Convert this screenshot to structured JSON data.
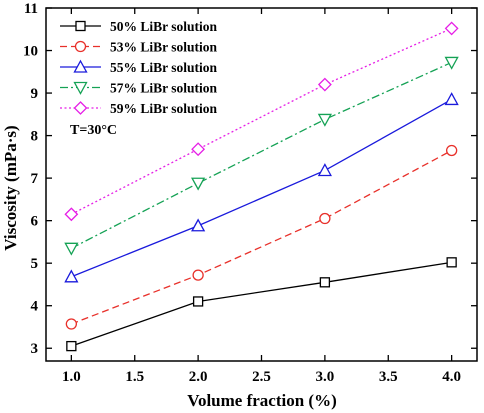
{
  "chart_data": {
    "type": "line",
    "xlabel": "Volume fraction (%)",
    "ylabel": "Viscosity (mPa·s)",
    "xlim": [
      0.8,
      4.2
    ],
    "ylim": [
      2.7,
      11
    ],
    "xticks": [
      "1.0",
      "1.5",
      "2.0",
      "2.5",
      "3.0",
      "3.5",
      "4.0"
    ],
    "yticks": [
      "3",
      "4",
      "5",
      "6",
      "7",
      "8",
      "9",
      "10",
      "11"
    ],
    "annotation": "T=30°C",
    "legend_position": "top-left",
    "grid": false,
    "x": [
      1.0,
      2.0,
      3.0,
      4.0
    ],
    "series": [
      {
        "name": "50% LiBr solution",
        "values": [
          3.05,
          4.1,
          4.55,
          5.02
        ],
        "color": "#000000",
        "dash": "solid",
        "marker": "square"
      },
      {
        "name": "53% LiBr solution",
        "values": [
          3.57,
          4.72,
          6.05,
          7.65
        ],
        "color": "#e8302a",
        "dash": "dashed",
        "marker": "circle"
      },
      {
        "name": "55% LiBr solution",
        "values": [
          4.68,
          5.88,
          7.18,
          8.85
        ],
        "color": "#1a1adc",
        "dash": "solid",
        "marker": "triangle-up"
      },
      {
        "name": "57% LiBr solution",
        "values": [
          5.35,
          6.88,
          8.38,
          9.72
        ],
        "color": "#15a255",
        "dash": "dash-dot",
        "marker": "triangle-down"
      },
      {
        "name": "59% LiBr solution",
        "values": [
          6.15,
          7.68,
          9.2,
          10.52
        ],
        "color": "#e61ee6",
        "dash": "dotted",
        "marker": "diamond"
      }
    ]
  }
}
